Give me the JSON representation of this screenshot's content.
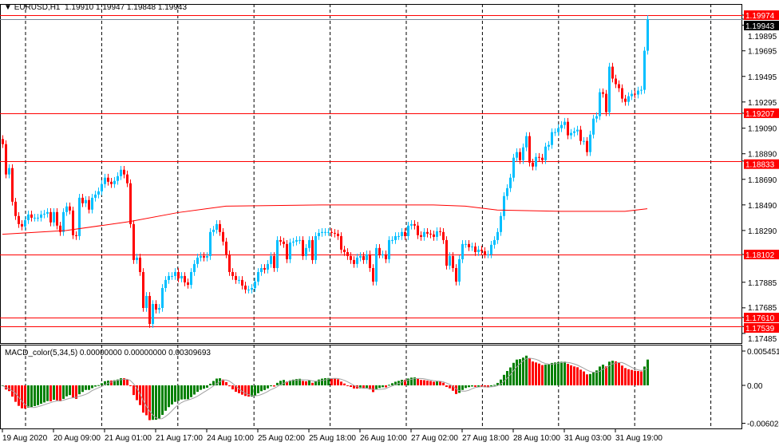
{
  "header": {
    "symbol": "EURUSD,H1",
    "open": "1.19910",
    "high": "1.19947",
    "low": "1.19848",
    "close": "1.19943"
  },
  "macd": {
    "label": "MACD_color(5,34,5) 0.00000000 0.00000000 0.00309693",
    "fast": 5,
    "slow": 34,
    "signal": 5,
    "axis_labels": [
      "0.0054513",
      "0.00",
      "-0.006024"
    ],
    "axis_values": [
      0.0054513,
      0,
      -0.006024
    ],
    "colors": {
      "up": "#008000",
      "down": "#ff0000",
      "signal": "#a0a0a0"
    }
  },
  "colors": {
    "bull": "#00bfff",
    "bear": "#ff0000",
    "level": "#ff0000",
    "bid": "#778899",
    "ma": "#ff0000",
    "grid": "#000000"
  },
  "price_axis": {
    "ticks": [
      "1.19895",
      "1.19695",
      "1.19495",
      "1.19295",
      "1.19090",
      "1.18890",
      "1.18690",
      "1.18490",
      "1.18290",
      "1.17885",
      "1.17685",
      "1.17485"
    ]
  },
  "levels": [
    {
      "price": "1.19974",
      "type": "level"
    },
    {
      "price": "1.19943",
      "type": "bid"
    },
    {
      "price": "1.19207",
      "type": "level"
    },
    {
      "price": "1.18833",
      "type": "level"
    },
    {
      "price": "1.18102",
      "type": "level"
    },
    {
      "price": "1.17610",
      "type": "level"
    },
    {
      "price": "1.17539",
      "type": "level"
    }
  ],
  "time_axis": {
    "labels": [
      "19 Aug 2020",
      "20 Aug 09:00",
      "21 Aug 01:00",
      "21 Aug 17:00",
      "24 Aug 10:00",
      "25 Aug 02:00",
      "25 Aug 18:00",
      "26 Aug 10:00",
      "27 Aug 02:00",
      "27 Aug 18:00",
      "28 Aug 10:00",
      "31 Aug 03:00",
      "31 Aug 19:00"
    ],
    "bars_per_label": 16
  },
  "chart_data": {
    "type": "candlestick",
    "timeframe": "H1",
    "ylim": [
      1.17485,
      1.19974
    ],
    "closes": [
      1.18965,
      1.18728,
      1.18778,
      1.18515,
      1.18403,
      1.1834,
      1.18321,
      1.18371,
      1.18415,
      1.1839,
      1.1839,
      1.1839,
      1.18415,
      1.18421,
      1.18434,
      1.18353,
      1.18434,
      1.18328,
      1.18278,
      1.18434,
      1.18478,
      1.18446,
      1.18253,
      1.18246,
      1.18546,
      1.18503,
      1.18528,
      1.18453,
      1.18546,
      1.18571,
      1.18596,
      1.18653,
      1.18703,
      1.18671,
      1.18653,
      1.18678,
      1.18715,
      1.18765,
      1.18728,
      1.18659,
      1.1834,
      1.18059,
      1.18078,
      1.17965,
      1.17684,
      1.17778,
      1.17559,
      1.17715,
      1.17671,
      1.17684,
      1.1784,
      1.17903,
      1.17934,
      1.17934,
      1.17965,
      1.17915,
      1.17934,
      1.17884,
      1.17865,
      1.17965,
      1.18028,
      1.18078,
      1.1809,
      1.18078,
      1.1809,
      1.18278,
      1.18296,
      1.1834,
      1.18278,
      1.18203,
      1.18103,
      1.17965,
      1.17934,
      1.17903,
      1.17903,
      1.17859,
      1.17828,
      1.17828,
      1.1784,
      1.1789,
      1.17965,
      1.17996,
      1.17984,
      1.18028,
      1.1809,
      1.17996,
      1.18215,
      1.18203,
      1.18184,
      1.18065,
      1.18196,
      1.18203,
      1.18215,
      1.18215,
      1.1809,
      1.18153,
      1.18215,
      1.18059,
      1.18246,
      1.18271,
      1.18278,
      1.18278,
      1.18278,
      1.18271,
      1.18265,
      1.18246,
      1.1814,
      1.18121,
      1.1809,
      1.18059,
      1.18028,
      1.18078,
      1.1809,
      1.18059,
      1.18103,
      1.17996,
      1.1789,
      1.18153,
      1.18103,
      1.18103,
      1.18065,
      1.18215,
      1.18215,
      1.18246,
      1.18246,
      1.18278,
      1.18246,
      1.18328,
      1.1834,
      1.18328,
      1.18253,
      1.1824,
      1.18278,
      1.18265,
      1.18259,
      1.1824,
      1.18284,
      1.18278,
      1.18215,
      1.18015,
      1.1809,
      1.17996,
      1.1789,
      1.18065,
      1.18184,
      1.18184,
      1.18159,
      1.18165,
      1.18121,
      1.1814,
      1.18128,
      1.18103,
      1.18103,
      1.18178,
      1.18215,
      1.18278,
      1.18403,
      1.18559,
      1.18621,
      1.18703,
      1.18859,
      1.18903,
      1.1884,
      1.1894,
      1.19028,
      1.18821,
      1.1879,
      1.18865,
      1.18859,
      1.1884,
      1.18946,
      1.18959,
      1.19059,
      1.19059,
      1.1909,
      1.19115,
      1.1914,
      1.19034,
      1.19053,
      1.19065,
      1.19078,
      1.1899,
      1.1899,
      1.18903,
      1.1904,
      1.19165,
      1.19184,
      1.19371,
      1.19359,
      1.19215,
      1.19571,
      1.19478,
      1.19434,
      1.19403,
      1.19321,
      1.19296,
      1.1934,
      1.19359,
      1.19353,
      1.19384,
      1.1939,
      1.19696,
      1.19943
    ],
    "ma_line": [
      [
        0,
        1.1826
      ],
      [
        20,
        1.1829
      ],
      [
        40,
        1.1836
      ],
      [
        55,
        1.1843
      ],
      [
        70,
        1.1848
      ],
      [
        100,
        1.1849
      ],
      [
        135,
        1.1849
      ],
      [
        145,
        1.1848
      ],
      [
        155,
        1.1845
      ],
      [
        175,
        1.1844
      ],
      [
        195,
        1.1844
      ],
      [
        202,
        1.1846
      ]
    ]
  }
}
